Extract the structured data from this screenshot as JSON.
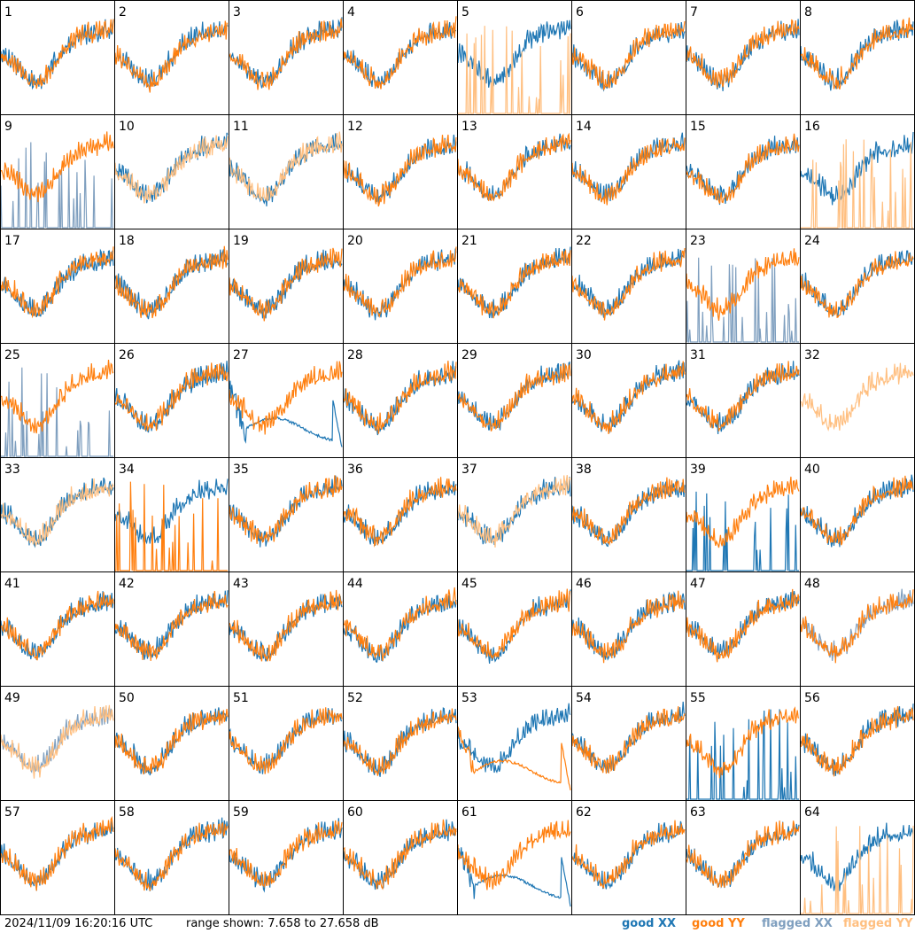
{
  "chart_data": {
    "type": "line",
    "layout": "small-multiples 8x8",
    "timestamp": "2024/11/09 16:20:16 UTC",
    "range_text": "range shown: 7.658 to 27.658 dB",
    "ylim": [
      7.658,
      27.658
    ],
    "legend": [
      {
        "key": "good_xx",
        "label": "good",
        "pol": "XX",
        "color": "#1f77b4"
      },
      {
        "key": "good_yy",
        "label": "good",
        "pol": "YY",
        "color": "#ff7f0e"
      },
      {
        "key": "flagged_xx",
        "label": "flagged",
        "pol": "XX",
        "color": "#7f9fbf"
      },
      {
        "key": "flagged_yy",
        "label": "flagged",
        "pol": "YY",
        "color": "#ffbf80"
      }
    ],
    "panels": [
      {
        "label": "1",
        "xx": "good",
        "yy": "good"
      },
      {
        "label": "2",
        "xx": "good",
        "yy": "good"
      },
      {
        "label": "3",
        "xx": "good",
        "yy": "good"
      },
      {
        "label": "4",
        "xx": "good",
        "yy": "good"
      },
      {
        "label": "5",
        "xx": "good",
        "yy": "spiky",
        "yyc": "flagged"
      },
      {
        "label": "6",
        "xx": "good",
        "yy": "good"
      },
      {
        "label": "7",
        "xx": "good",
        "yy": "good"
      },
      {
        "label": "8",
        "xx": "good",
        "yy": "good"
      },
      {
        "label": "9",
        "xx": "spiky",
        "xxc": "flagged",
        "yy": "good"
      },
      {
        "label": "10",
        "xx": "good",
        "yy": "good",
        "yyc": "flagged"
      },
      {
        "label": "11",
        "xx": "good",
        "yy": "good",
        "yyc": "flagged"
      },
      {
        "label": "12",
        "xx": "good",
        "yy": "good"
      },
      {
        "label": "13",
        "xx": "good",
        "yy": "good"
      },
      {
        "label": "14",
        "xx": "good",
        "yy": "good"
      },
      {
        "label": "15",
        "xx": "good",
        "yy": "good"
      },
      {
        "label": "16",
        "xx": "good",
        "yy": "spiky",
        "yyc": "flagged"
      },
      {
        "label": "17",
        "xx": "good",
        "yy": "good"
      },
      {
        "label": "18",
        "xx": "good",
        "yy": "good"
      },
      {
        "label": "19",
        "xx": "good",
        "yy": "good"
      },
      {
        "label": "20",
        "xx": "good",
        "yy": "good"
      },
      {
        "label": "21",
        "xx": "good",
        "yy": "good"
      },
      {
        "label": "22",
        "xx": "good",
        "yy": "good"
      },
      {
        "label": "23",
        "xx": "spiky",
        "xxc": "flagged",
        "yy": "good"
      },
      {
        "label": "24",
        "xx": "good",
        "yy": "good"
      },
      {
        "label": "25",
        "xx": "spiky",
        "xxc": "flagged",
        "yy": "good"
      },
      {
        "label": "26",
        "xx": "good",
        "yy": "good"
      },
      {
        "label": "27",
        "xx": "decay",
        "yy": "good"
      },
      {
        "label": "28",
        "xx": "good",
        "yy": "good"
      },
      {
        "label": "29",
        "xx": "good",
        "yy": "good"
      },
      {
        "label": "30",
        "xx": "good",
        "yy": "good"
      },
      {
        "label": "31",
        "xx": "good",
        "yy": "good"
      },
      {
        "label": "32",
        "xx": "none",
        "yy": "good",
        "yyc": "flagged"
      },
      {
        "label": "33",
        "xx": "good",
        "yy": "good",
        "yyc": "flagged"
      },
      {
        "label": "34",
        "xx": "good",
        "yy": "spiky"
      },
      {
        "label": "35",
        "xx": "good",
        "yy": "good"
      },
      {
        "label": "36",
        "xx": "good",
        "yy": "good"
      },
      {
        "label": "37",
        "xx": "good",
        "yy": "good",
        "yyc": "flagged"
      },
      {
        "label": "38",
        "xx": "good",
        "yy": "good"
      },
      {
        "label": "39",
        "xx": "spiky",
        "yy": "good"
      },
      {
        "label": "40",
        "xx": "good",
        "yy": "good"
      },
      {
        "label": "41",
        "xx": "good",
        "yy": "good"
      },
      {
        "label": "42",
        "xx": "good",
        "yy": "good"
      },
      {
        "label": "43",
        "xx": "good",
        "yy": "good"
      },
      {
        "label": "44",
        "xx": "good",
        "yy": "good"
      },
      {
        "label": "45",
        "xx": "good",
        "yy": "good"
      },
      {
        "label": "46",
        "xx": "good",
        "yy": "good"
      },
      {
        "label": "47",
        "xx": "good",
        "yy": "good"
      },
      {
        "label": "48",
        "xx": "good",
        "xxc": "flagged",
        "yy": "good"
      },
      {
        "label": "49",
        "xx": "good",
        "xxc": "flagged",
        "yy": "good",
        "yyc": "flagged"
      },
      {
        "label": "50",
        "xx": "good",
        "yy": "good"
      },
      {
        "label": "51",
        "xx": "good",
        "yy": "good"
      },
      {
        "label": "52",
        "xx": "good",
        "yy": "good"
      },
      {
        "label": "53",
        "xx": "good",
        "yy": "decay"
      },
      {
        "label": "54",
        "xx": "good",
        "yy": "good"
      },
      {
        "label": "55",
        "xx": "spiky",
        "yy": "good"
      },
      {
        "label": "56",
        "xx": "good",
        "yy": "good"
      },
      {
        "label": "57",
        "xx": "good",
        "yy": "good"
      },
      {
        "label": "58",
        "xx": "good",
        "yy": "good"
      },
      {
        "label": "59",
        "xx": "good",
        "yy": "good"
      },
      {
        "label": "60",
        "xx": "good",
        "yy": "good"
      },
      {
        "label": "61",
        "xx": "decay",
        "yy": "good"
      },
      {
        "label": "62",
        "xx": "good",
        "yy": "good"
      },
      {
        "label": "63",
        "xx": "good",
        "yy": "good"
      },
      {
        "label": "64",
        "xx": "good",
        "yy": "spiky",
        "yyc": "flagged"
      }
    ]
  }
}
